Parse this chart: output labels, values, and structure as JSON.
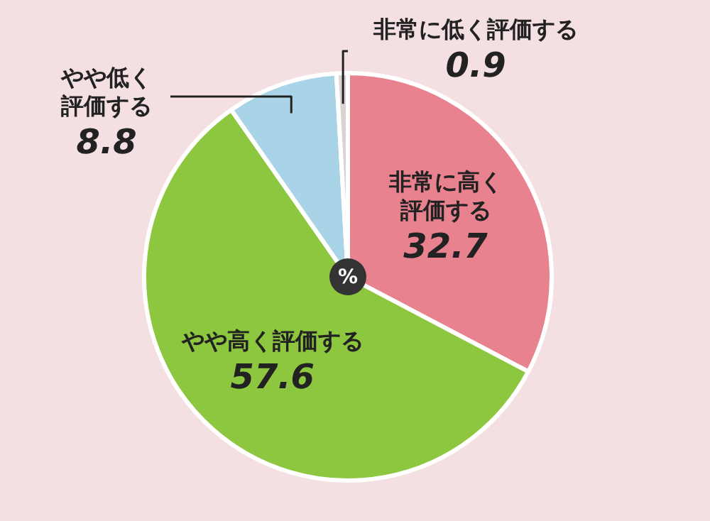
{
  "chart_data": {
    "type": "pie",
    "categories": [
      "非常に高く評価する",
      "やや高く評価する",
      "やや低く評価する",
      "非常に低く評価する"
    ],
    "values": [
      32.7,
      57.6,
      8.8,
      0.9
    ],
    "colors": [
      "#e8828f",
      "#8dc63f",
      "#a9d3e6",
      "#d9d4d0"
    ],
    "data_labels": true,
    "legend": false,
    "annotations": [
      "%"
    ]
  }
}
